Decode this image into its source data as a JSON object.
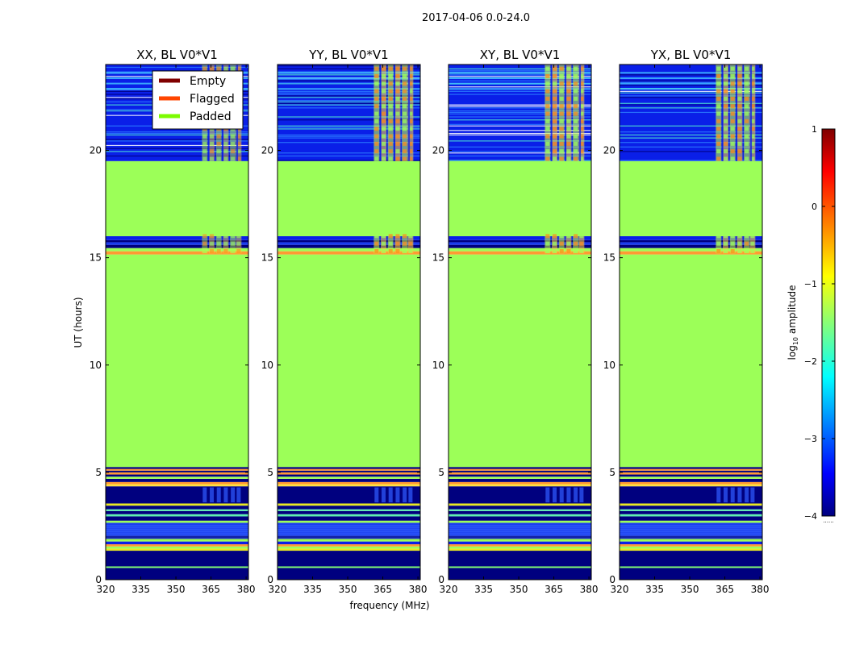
{
  "figure": {
    "title": "2017-04-06 0.0-24.0"
  },
  "chart_data": {
    "type": "heatmap",
    "title": "2017-04-06 0.0-24.0",
    "xlabel": "frequency (MHz)",
    "ylabel": "UT (hours)",
    "xlim": [
      320,
      381
    ],
    "ylim": [
      0,
      24
    ],
    "x_ticks": [
      320,
      335,
      350,
      365,
      380
    ],
    "y_ticks": [
      0,
      5,
      10,
      15,
      20
    ],
    "panels": [
      {
        "title": "XX, BL V0*V1"
      },
      {
        "title": "YY, BL V0*V1"
      },
      {
        "title": "XY, BL V0*V1"
      },
      {
        "title": "YX, BL V0*V1"
      }
    ],
    "legend": {
      "placement": "top-right of first panel",
      "entries": [
        {
          "label": "Empty",
          "color": "#800000"
        },
        {
          "label": "Flagged",
          "color": "#ff4500"
        },
        {
          "label": "Padded",
          "color": "#7cfc00"
        }
      ]
    },
    "padded_ranges_hours": [
      [
        5.25,
        15.15
      ],
      [
        16.0,
        19.5
      ]
    ],
    "flagged_lines_hours": [
      4.45,
      4.95,
      5.1,
      15.25
    ],
    "rfi_band_mhz": [
      362,
      378
    ],
    "colorbar": {
      "label": "log₁₀ amplitude",
      "label_base": "log",
      "label_sub": "10",
      "label_rest": " amplitude",
      "range": [
        -4,
        1
      ],
      "ticks": [
        1,
        0,
        -1,
        -2,
        -3,
        -4
      ],
      "tick_labels": [
        "1",
        "0",
        "−1",
        "−2",
        "−3",
        "−4"
      ],
      "underlabel": "......",
      "colormap": "jet"
    }
  }
}
